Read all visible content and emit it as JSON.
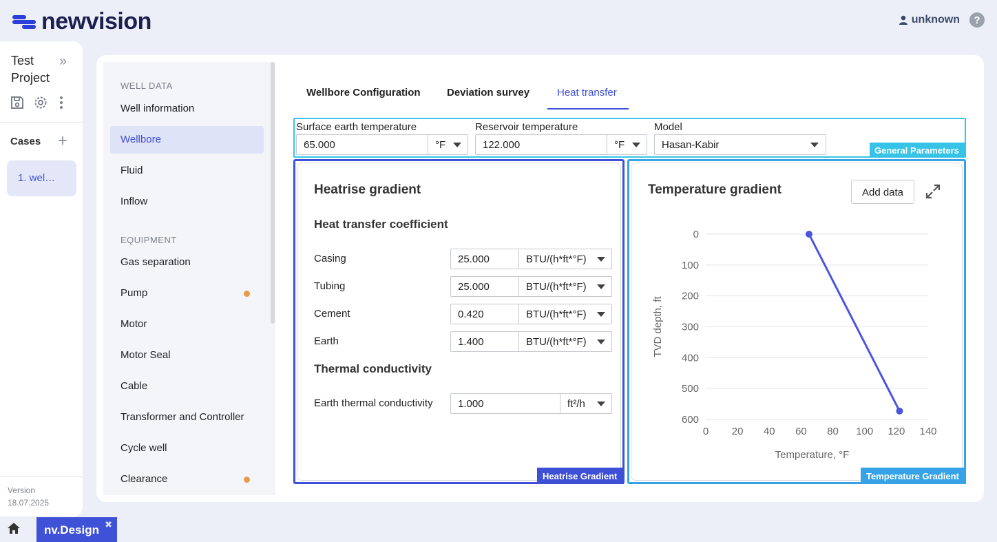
{
  "header": {
    "brand": "newvision",
    "user": "unknown",
    "help_icon": "question-circle-icon"
  },
  "project": {
    "title": "Test Project",
    "cases_label": "Cases",
    "case_item": "1. wel…",
    "version_label": "Version",
    "version_date": "18.07.2025"
  },
  "bottom_bar": {
    "app_tab": "nv.Design"
  },
  "nav": {
    "section_well": "WELL DATA",
    "section_equipment": "EQUIPMENT",
    "items": [
      {
        "label": "Well information"
      },
      {
        "label": "Wellbore"
      },
      {
        "label": "Fluid"
      },
      {
        "label": "Inflow"
      },
      {
        "label": "Gas separation"
      },
      {
        "label": "Pump"
      },
      {
        "label": "Motor"
      },
      {
        "label": "Motor Seal"
      },
      {
        "label": "Cable"
      },
      {
        "label": "Transformer and Controller"
      },
      {
        "label": "Cycle well"
      },
      {
        "label": "Clearance"
      }
    ],
    "active": "Wellbore",
    "dot_color": "#e89a4b"
  },
  "tabs": [
    {
      "label": "Wellbore Configuration"
    },
    {
      "label": "Deviation survey"
    },
    {
      "label": "Heat transfer"
    }
  ],
  "general": {
    "tag": "General Parameters",
    "surface_label": "Surface earth temperature",
    "surface_value": "65.000",
    "surface_unit": "°F",
    "reservoir_label": "Reservoir temperature",
    "reservoir_value": "122.000",
    "reservoir_unit": "°F",
    "model_label": "Model",
    "model_value": "Hasan-Kabir"
  },
  "heatrise": {
    "tag": "Heatrise Gradient",
    "title": "Heatrise gradient",
    "htc_title": "Heat transfer coefficient",
    "rows": [
      {
        "label": "Casing",
        "value": "25.000",
        "unit": "BTU/(h*ft*°F)"
      },
      {
        "label": "Tubing",
        "value": "25.000",
        "unit": "BTU/(h*ft*°F)"
      },
      {
        "label": "Cement",
        "value": "0.420",
        "unit": "BTU/(h*ft*°F)"
      },
      {
        "label": "Earth",
        "value": "1.400",
        "unit": "BTU/(h*ft*°F)"
      }
    ],
    "tc_title": "Thermal conductivity",
    "tc_row": {
      "label": "Earth thermal conductivity",
      "value": "1.000",
      "unit": "ft²/h"
    }
  },
  "temperature": {
    "tag": "Temperature Gradient",
    "title": "Temperature gradient",
    "add_data": "Add data"
  },
  "colors": {
    "accent": "#3d50d6",
    "cyan": "#37c3e6",
    "line": "#4a55e0"
  },
  "chart_data": {
    "type": "line",
    "xlabel": "Temperature, °F",
    "ylabel": "TVD depth, ft",
    "xlim": [
      0,
      140
    ],
    "ylim": [
      0,
      600
    ],
    "y_inverted": true,
    "x_ticks": [
      0,
      20,
      40,
      60,
      80,
      100,
      120,
      140
    ],
    "y_ticks": [
      0,
      100,
      200,
      300,
      400,
      500,
      600
    ],
    "grid": true,
    "series": [
      {
        "x": [
          65,
          122
        ],
        "y": [
          0,
          573
        ]
      }
    ]
  }
}
